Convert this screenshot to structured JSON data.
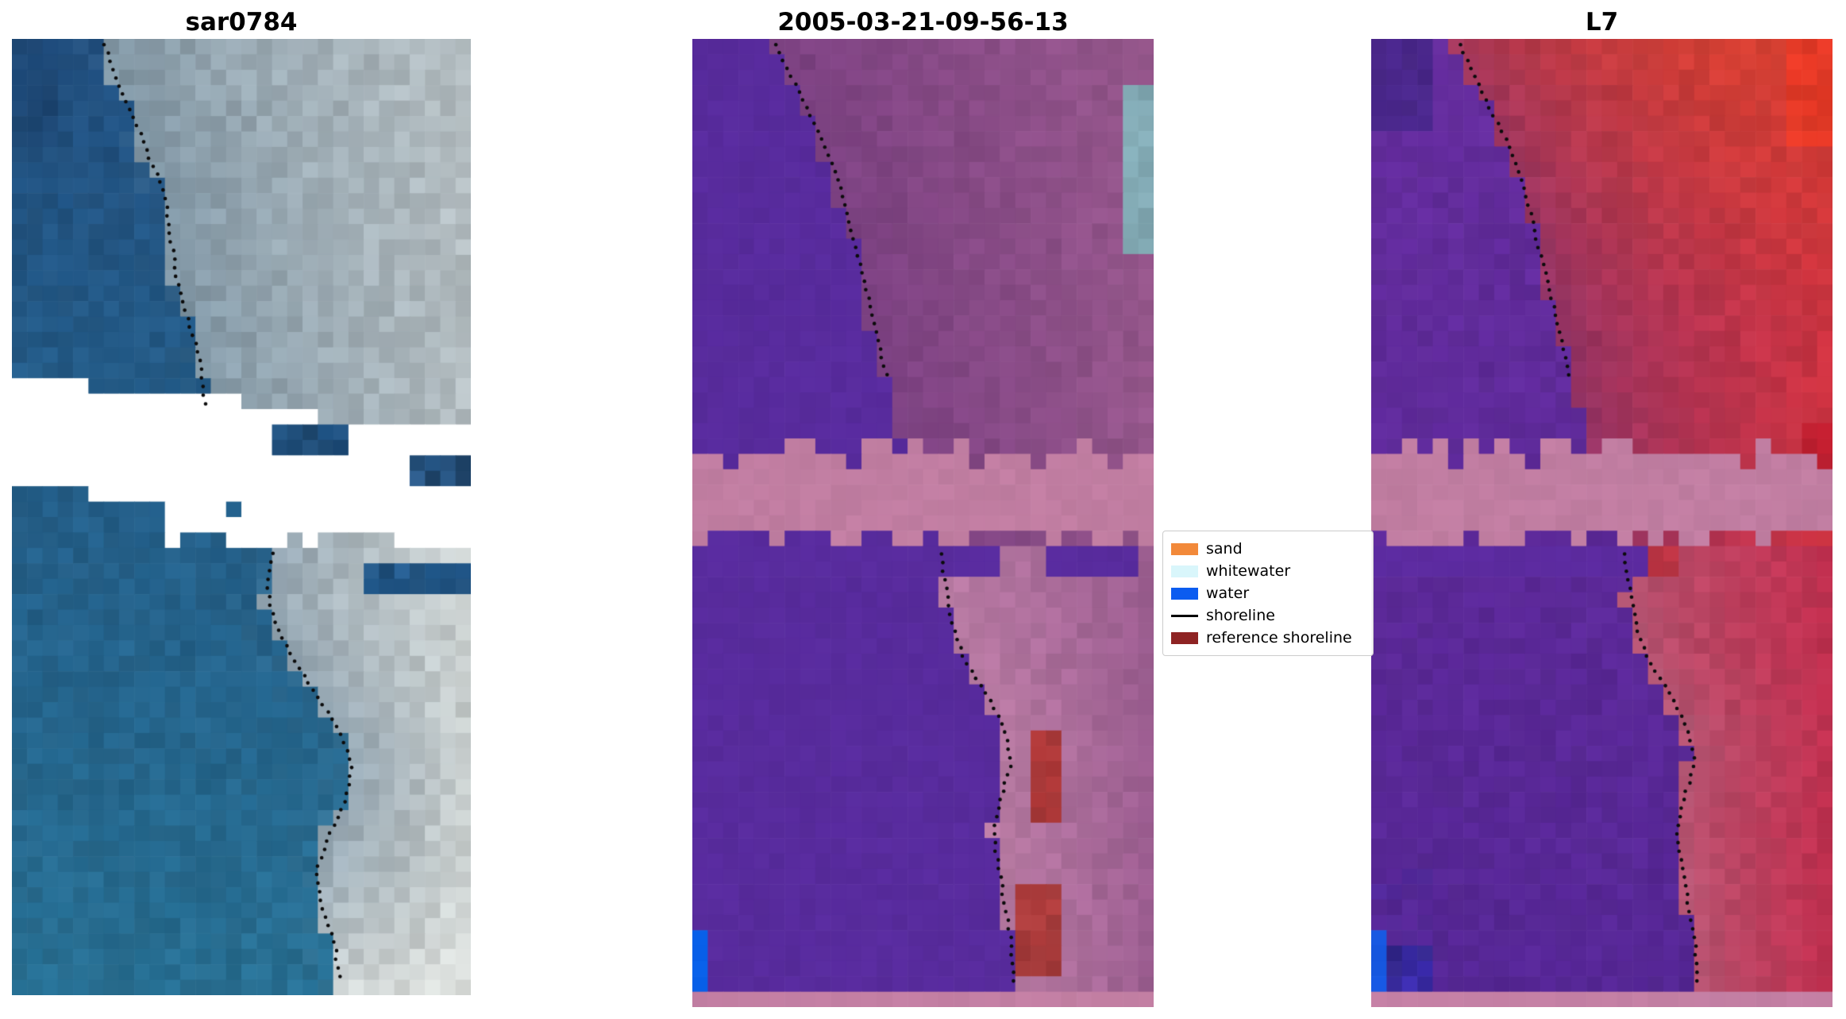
{
  "page": {
    "background": "#ffffff"
  },
  "panels": [
    {
      "id": "sar0784",
      "title": "sar0784",
      "style": "rgb",
      "palette": {
        "water_top": "#27588c",
        "water_bottom": "#2e7ba1",
        "water_dark_corner": "#1f4876",
        "shore_light": "#7fa3b8",
        "land_near": "#8ca4b4",
        "land_far": "#c6d0d4",
        "land_near_low": "#9db1bf",
        "land_far_low": "#dde3e2",
        "land_white": "#f5f8f4"
      },
      "patches": [
        {
          "u0": 0,
          "u1": 1,
          "v0": 0.352,
          "v1": 0.468,
          "slope": 0.07,
          "color": "#ffffff",
          "noise": 0
        },
        {
          "u0": 0.56,
          "u1": 0.74,
          "v0": 0.405,
          "v1": 0.44,
          "color": "#2a5f91",
          "noise": 0.12
        },
        {
          "u0": 0.86,
          "u1": 1.0,
          "v0": 0.43,
          "v1": 0.468,
          "color": "#34679a",
          "noise": 0.15
        },
        {
          "u0": 0.33,
          "u1": 0.68,
          "v0": 0.5,
          "v1": 0.537,
          "color": "#ffffff",
          "noise": 0,
          "wiggle": 0.01
        },
        {
          "u0": 0.78,
          "u1": 1.0,
          "v0": 0.549,
          "v1": 0.58,
          "color": "#2f6ba2",
          "noise": 0.12
        }
      ],
      "shoreline": {
        "segments": [
          [
            [
              0.205,
              0.006
            ],
            [
              0.231,
              0.046
            ],
            [
              0.269,
              0.082
            ],
            [
              0.308,
              0.132
            ],
            [
              0.333,
              0.156
            ],
            [
              0.346,
              0.199
            ],
            [
              0.359,
              0.243
            ],
            [
              0.385,
              0.292
            ],
            [
              0.41,
              0.329
            ],
            [
              0.425,
              0.385
            ]
          ],
          [
            [
              0.57,
              0.538
            ],
            [
              0.56,
              0.575
            ],
            [
              0.575,
              0.612
            ],
            [
              0.615,
              0.649
            ],
            [
              0.667,
              0.686
            ],
            [
              0.718,
              0.723
            ],
            [
              0.744,
              0.76
            ],
            [
              0.731,
              0.797
            ],
            [
              0.692,
              0.834
            ],
            [
              0.667,
              0.871
            ],
            [
              0.679,
              0.908
            ],
            [
              0.705,
              0.944
            ],
            [
              0.718,
              0.988
            ]
          ]
        ]
      }
    },
    {
      "id": "classified",
      "title": "2005-03-21-09-56-13",
      "style": "classified",
      "palette": {
        "water": "#5c2ea3",
        "land_near": "#85478b",
        "land_far": "#a05e95",
        "land_near_low": "#c584ae",
        "land_far_low": "#a7659b",
        "land_dark": "#74408f",
        "land_light": "#b877a4"
      },
      "patches": [
        {
          "u0": 0.93,
          "u1": 1.01,
          "v0": 0.055,
          "v1": 0.215,
          "color": "#8fb9c4",
          "noise": 0.06
        },
        {
          "u0": 0,
          "u1": 1,
          "v0": 0.44,
          "v1": 0.524,
          "color": "#c782a7",
          "noise": 0.025,
          "wiggle": 0.012
        },
        {
          "u0": 0,
          "u1": 0.655,
          "v0": 0.524,
          "v1": 0.554,
          "color": "#5c2ea3",
          "noise": 0.02
        },
        {
          "u0": 0.78,
          "u1": 0.965,
          "v0": 0.527,
          "v1": 0.552,
          "color": "#5c2ea3",
          "noise": 0.02
        },
        {
          "u0": 0.73,
          "u1": 0.8,
          "v0": 0.714,
          "v1": 0.81,
          "color": "#bb4040",
          "noise": 0.07
        },
        {
          "u0": 0.7,
          "u1": 0.815,
          "v0": 0.875,
          "v1": 0.976,
          "color": "#bb4444",
          "noise": 0.07
        },
        {
          "u0": 0,
          "u1": 0.034,
          "v0": 0.915,
          "v1": 0.986,
          "color": "#0a64f0",
          "noise": 0.02
        },
        {
          "u0": 0,
          "u1": 1,
          "v0": 0.986,
          "v1": 1.01,
          "color": "#c782a7",
          "noise": 0.015
        }
      ],
      "shoreline": {
        "segments": [
          [
            [
              0.184,
              0.006
            ],
            [
              0.235,
              0.057
            ],
            [
              0.286,
              0.106
            ],
            [
              0.324,
              0.155
            ],
            [
              0.349,
              0.203
            ],
            [
              0.375,
              0.252
            ],
            [
              0.401,
              0.3
            ],
            [
              0.426,
              0.355
            ]
          ],
          [
            [
              0.541,
              0.532
            ],
            [
              0.554,
              0.568
            ],
            [
              0.566,
              0.605
            ],
            [
              0.592,
              0.641
            ],
            [
              0.643,
              0.678
            ],
            [
              0.681,
              0.714
            ],
            [
              0.694,
              0.751
            ],
            [
              0.668,
              0.787
            ],
            [
              0.656,
              0.824
            ],
            [
              0.668,
              0.86
            ],
            [
              0.681,
              0.897
            ],
            [
              0.694,
              0.933
            ],
            [
              0.699,
              0.982
            ]
          ]
        ]
      }
    },
    {
      "id": "l7",
      "title": "L7",
      "style": "falsecolor",
      "palette": {
        "water_top": "#6d32a8",
        "water_bottom": "#5c2b9f",
        "water_corner": "#44298c",
        "water_blue_low": "#4636bc",
        "land_near": "#9c3a72",
        "land_far": "#dc3947",
        "land_near_low": "#c2607f",
        "land_far_low": "#ce3556",
        "land_top": "#ea4a2e"
      },
      "patches": [
        {
          "u0": 0.89,
          "u1": 1.01,
          "v0": 0,
          "v1": 0.118,
          "color": "#f5402c",
          "noise": 0.06
        },
        {
          "u0": 0.945,
          "u1": 1.01,
          "v0": 0.398,
          "v1": 0.44,
          "color": "#cc2335",
          "noise": 0.05
        },
        {
          "u0": 0,
          "u1": 1,
          "v0": 0.44,
          "v1": 0.524,
          "color": "#c782a7",
          "noise": 0.025,
          "wiggle": 0.012
        },
        {
          "u0": 0,
          "u1": 0.6,
          "v0": 0.524,
          "v1": 0.552,
          "color": "#5f2da4",
          "noise": 0.02
        },
        {
          "u0": 0.6,
          "u1": 0.66,
          "v0": 0.526,
          "v1": 0.552,
          "color": "#c53848",
          "noise": 0.05
        },
        {
          "u0": 0,
          "u1": 0.12,
          "v0": 0.93,
          "v1": 0.986,
          "color": "#4939c0",
          "noise": 0.15
        },
        {
          "u0": 0,
          "u1": 0.03,
          "v0": 0.925,
          "v1": 0.986,
          "color": "#1a5ce8",
          "noise": 0.03
        },
        {
          "u0": 0,
          "u1": 1,
          "v0": 0.986,
          "v1": 1.01,
          "color": "#c782a7",
          "noise": 0.015
        }
      ],
      "shoreline": {
        "segments": [
          [
            [
              0.195,
              0.006
            ],
            [
              0.245,
              0.057
            ],
            [
              0.296,
              0.106
            ],
            [
              0.334,
              0.155
            ],
            [
              0.359,
              0.203
            ],
            [
              0.385,
              0.252
            ],
            [
              0.411,
              0.3
            ],
            [
              0.436,
              0.355
            ]
          ],
          [
            [
              0.551,
              0.532
            ],
            [
              0.564,
              0.568
            ],
            [
              0.576,
              0.605
            ],
            [
              0.602,
              0.641
            ],
            [
              0.653,
              0.678
            ],
            [
              0.691,
              0.714
            ],
            [
              0.704,
              0.751
            ],
            [
              0.678,
              0.787
            ],
            [
              0.666,
              0.824
            ],
            [
              0.678,
              0.86
            ],
            [
              0.691,
              0.897
            ],
            [
              0.704,
              0.933
            ],
            [
              0.709,
              0.982
            ]
          ]
        ]
      }
    }
  ],
  "legend": {
    "items": [
      {
        "label": "sand",
        "type": "patch",
        "color": "#f2893a"
      },
      {
        "label": "whitewater",
        "type": "patch",
        "color": "#d9f6fb"
      },
      {
        "label": "water",
        "type": "patch",
        "color": "#0b5cf0"
      },
      {
        "label": "shoreline",
        "type": "line",
        "color": "#000000"
      },
      {
        "label": "reference shoreline",
        "type": "patch",
        "color": "#8e2323"
      }
    ]
  },
  "chart_data": {
    "type": "image-panels",
    "description": "Shoreline detection figure: three co-registered coastal satellite image panels with detected shoreline (black dotted line) and classification legend",
    "panels": [
      {
        "title": "sar0784",
        "content": "true-color satellite image, water left / land right, white no-data diagonal band across middle"
      },
      {
        "title": "2005-03-21-09-56-13",
        "content": "classified image: purple water region, mauve land, pink masked band across middle, red and blue classified patches, cyan patch top-right"
      },
      {
        "title": "L7",
        "content": "false-color Landsat 7 image: purple water, red land, pink masked band across middle, bright red patch top-right, blue patch bottom-left"
      }
    ],
    "legend_entries": [
      "sand",
      "whitewater",
      "water",
      "shoreline",
      "reference shoreline"
    ],
    "legend_position": "center-right between second and third panel"
  }
}
